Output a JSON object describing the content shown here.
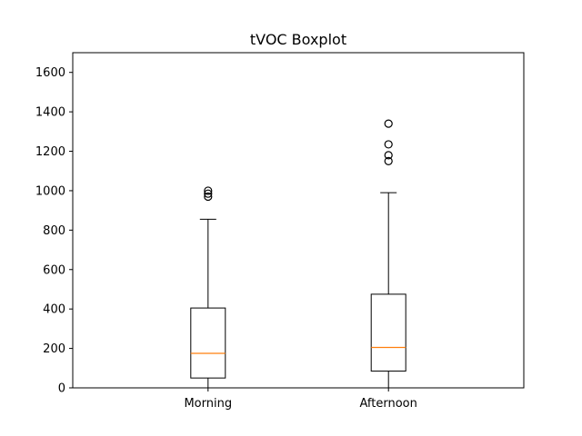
{
  "chart_data": {
    "type": "boxplot",
    "title": "tVOC Boxplot",
    "xlabel": "",
    "ylabel": "",
    "ylim": [
      0,
      1700
    ],
    "yticks": [
      0,
      200,
      400,
      600,
      800,
      1000,
      1200,
      1400,
      1600
    ],
    "categories": [
      "Morning",
      "Afternoon"
    ],
    "boxes": [
      {
        "category": "Morning",
        "whisker_low": 0,
        "q1": 50,
        "median": 175,
        "q3": 405,
        "whisker_high": 855,
        "outliers": [
          970,
          985,
          1000
        ]
      },
      {
        "category": "Afternoon",
        "whisker_low": 0,
        "q1": 85,
        "median": 205,
        "q3": 475,
        "whisker_high": 990,
        "outliers": [
          1150,
          1180,
          1235,
          1340
        ]
      }
    ],
    "grid": false,
    "colors": {
      "box": "#000000",
      "median": "#ff7f0e",
      "outlier": "#000000"
    }
  }
}
